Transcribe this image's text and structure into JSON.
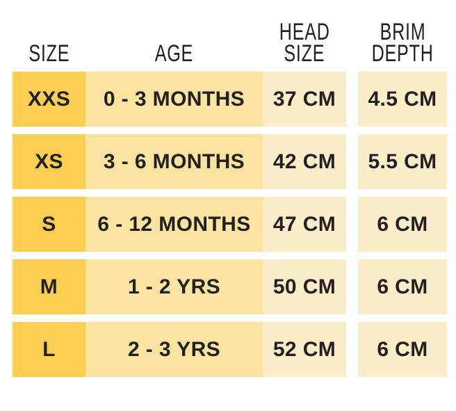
{
  "colors": {
    "background": "#ffffff",
    "text": "#232021",
    "col_size_fill": "#fbcd53",
    "col_age_fill": "#fbe3a2",
    "col_head_fill": "#fcedca",
    "col_brim_fill": "#fcedca"
  },
  "header": {
    "size": [
      "SIZE"
    ],
    "age": [
      "AGE"
    ],
    "head": [
      "HEAD",
      "SIZE"
    ],
    "brim": [
      "BRIM",
      "DEPTH"
    ]
  },
  "rows": [
    {
      "size": "XXS",
      "age": "0 - 3 MONTHS",
      "head": "37 CM",
      "brim": "4.5 CM"
    },
    {
      "size": "XS",
      "age": "3 - 6 MONTHS",
      "head": "42 CM",
      "brim": "5.5 CM"
    },
    {
      "size": "S",
      "age": "6 - 12 MONTHS",
      "head": "47 CM",
      "brim": "6 CM"
    },
    {
      "size": "M",
      "age": "1 - 2 YRS",
      "head": "50 CM",
      "brim": "6 CM"
    },
    {
      "size": "L",
      "age": "2 - 3 YRS",
      "head": "52 CM",
      "brim": "6 CM"
    }
  ],
  "chart_data": {
    "type": "table",
    "title": "",
    "columns": [
      "SIZE",
      "AGE",
      "HEAD SIZE",
      "BRIM DEPTH"
    ],
    "rows": [
      [
        "XXS",
        "0 - 3 MONTHS",
        "37 CM",
        "4.5 CM"
      ],
      [
        "XS",
        "3 - 6 MONTHS",
        "42 CM",
        "5.5 CM"
      ],
      [
        "S",
        "6 - 12 MONTHS",
        "47 CM",
        "6 CM"
      ],
      [
        "M",
        "1 - 2 YRS",
        "50 CM",
        "6 CM"
      ],
      [
        "L",
        "2 - 3 YRS",
        "52 CM",
        "6 CM"
      ]
    ]
  }
}
